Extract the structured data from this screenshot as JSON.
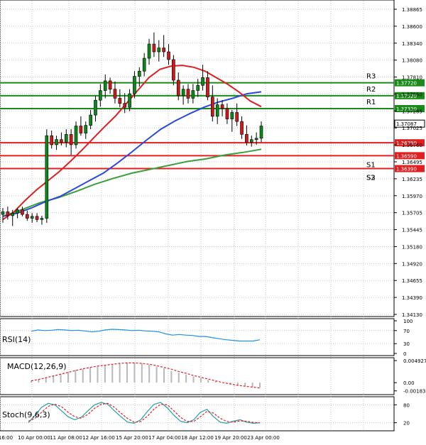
{
  "chart_data": {
    "type": "candlestick",
    "main": {
      "ylim": [
        1.3413,
        1.3886
      ],
      "y_ticks": [
        "1.38865",
        "1.38600",
        "1.38340",
        "1.38080",
        "1.37810",
        "1.37550",
        "1.37285",
        "1.37025",
        "1.36760",
        "1.36495",
        "1.36235",
        "1.35970",
        "1.35705",
        "1.35445",
        "1.35180",
        "1.34920",
        "1.34655",
        "1.34390",
        "1.34130"
      ],
      "x_ticks": [
        "16:00",
        "10 Apr 00:00",
        "11 Apr 08:00",
        "12 Apr 16:00",
        "15 Apr 20:00",
        "17 Apr 04:00",
        "18 Apr 12:00",
        "19 Apr 20:00",
        "23 Apr 00:00"
      ],
      "levels": [
        {
          "name": "R3",
          "value": 1.3772,
          "label": "1.37720",
          "color": "#1a8a1a"
        },
        {
          "name": "R2",
          "value": 1.3752,
          "label": "1.37520",
          "color": "#1a8a1a"
        },
        {
          "name": "R1",
          "value": 1.3732,
          "label": "1.37320",
          "color": "#1a8a1a"
        },
        {
          "name": "",
          "value": 1.3679,
          "label": "1.36790",
          "color": "#e02020"
        },
        {
          "name": "S1",
          "value": 1.3659,
          "label": "1.36590",
          "color": "#e02020"
        },
        {
          "name": "S2",
          "value": 1.3639,
          "label": "1.36390",
          "color": "#e02020"
        }
      ],
      "s3_label": "S3",
      "last_price": {
        "value": 1.37087,
        "label": "1.37087"
      },
      "candles": [
        [
          1.3568,
          1.3578,
          1.3555,
          1.3572
        ],
        [
          1.3572,
          1.358,
          1.356,
          1.3566
        ],
        [
          1.3566,
          1.3575,
          1.355,
          1.357
        ],
        [
          1.357,
          1.3578,
          1.3562,
          1.3575
        ],
        [
          1.3575,
          1.358,
          1.3565,
          1.3568
        ],
        [
          1.3568,
          1.3574,
          1.3558,
          1.3562
        ],
        [
          1.3562,
          1.357,
          1.3555,
          1.3565
        ],
        [
          1.3565,
          1.357,
          1.3556,
          1.356
        ],
        [
          1.356,
          1.3566,
          1.3552,
          1.3562
        ],
        [
          1.3562,
          1.37,
          1.3555,
          1.369
        ],
        [
          1.369,
          1.3698,
          1.367,
          1.3676
        ],
        [
          1.3676,
          1.369,
          1.3668,
          1.3684
        ],
        [
          1.3684,
          1.3695,
          1.3675,
          1.368
        ],
        [
          1.368,
          1.37,
          1.3672,
          1.3692
        ],
        [
          1.3692,
          1.37,
          1.366,
          1.3676
        ],
        [
          1.3676,
          1.3712,
          1.367,
          1.3705
        ],
        [
          1.3705,
          1.372,
          1.369,
          1.3694
        ],
        [
          1.3694,
          1.3712,
          1.3685,
          1.3706
        ],
        [
          1.3706,
          1.373,
          1.37,
          1.3722
        ],
        [
          1.3722,
          1.3752,
          1.3712,
          1.3745
        ],
        [
          1.3745,
          1.377,
          1.3735,
          1.376
        ],
        [
          1.376,
          1.3785,
          1.3748,
          1.3775
        ],
        [
          1.3775,
          1.378,
          1.3755,
          1.3762
        ],
        [
          1.3762,
          1.3774,
          1.374,
          1.3748
        ],
        [
          1.3748,
          1.3762,
          1.3734,
          1.374
        ],
        [
          1.374,
          1.3756,
          1.3725,
          1.3734
        ],
        [
          1.3734,
          1.3762,
          1.3728,
          1.3755
        ],
        [
          1.3755,
          1.379,
          1.3748,
          1.3782
        ],
        [
          1.3782,
          1.3796,
          1.3766,
          1.379
        ],
        [
          1.379,
          1.3818,
          1.3782,
          1.381
        ],
        [
          1.381,
          1.384,
          1.38,
          1.3832
        ],
        [
          1.3832,
          1.385,
          1.3812,
          1.382
        ],
        [
          1.382,
          1.3838,
          1.3805,
          1.3826
        ],
        [
          1.3826,
          1.3846,
          1.3812,
          1.382
        ],
        [
          1.382,
          1.3832,
          1.38,
          1.3808
        ],
        [
          1.3808,
          1.3815,
          1.3768,
          1.3776
        ],
        [
          1.3776,
          1.3788,
          1.3745,
          1.3752
        ],
        [
          1.3752,
          1.3768,
          1.3738,
          1.3762
        ],
        [
          1.3762,
          1.377,
          1.374,
          1.3748
        ],
        [
          1.3748,
          1.377,
          1.374,
          1.376
        ],
        [
          1.376,
          1.3778,
          1.375,
          1.3768
        ],
        [
          1.3768,
          1.38,
          1.376,
          1.378
        ],
        [
          1.378,
          1.379,
          1.3745,
          1.375
        ],
        [
          1.375,
          1.3768,
          1.3712,
          1.372
        ],
        [
          1.372,
          1.3748,
          1.3708,
          1.3738
        ],
        [
          1.3738,
          1.3745,
          1.372,
          1.3732
        ],
        [
          1.3732,
          1.374,
          1.3708,
          1.3716
        ],
        [
          1.3716,
          1.373,
          1.3696,
          1.3726
        ],
        [
          1.3726,
          1.374,
          1.3705,
          1.3712
        ],
        [
          1.3712,
          1.372,
          1.3685,
          1.3692
        ],
        [
          1.3692,
          1.3706,
          1.3675,
          1.368
        ],
        [
          1.368,
          1.369,
          1.3673,
          1.3684
        ],
        [
          1.3684,
          1.3695,
          1.3676,
          1.3686
        ],
        [
          1.3686,
          1.3712,
          1.368,
          1.3705
        ]
      ],
      "ma_red": [
        1.356,
        1.3572,
        1.359,
        1.3606,
        1.362,
        1.3634,
        1.365,
        1.3667,
        1.3685,
        1.3703,
        1.372,
        1.374,
        1.376,
        1.378,
        1.3793,
        1.3798,
        1.3799,
        1.3796,
        1.379,
        1.378,
        1.377,
        1.3758,
        1.3744,
        1.3735
      ],
      "ma_blue": [
        1.3565,
        1.357,
        1.3578,
        1.3588,
        1.3596,
        1.3608,
        1.362,
        1.3632,
        1.3648,
        1.3665,
        1.3683,
        1.37,
        1.3713,
        1.3724,
        1.3734,
        1.3742,
        1.3748,
        1.3755,
        1.3758
      ],
      "ma_green": [
        1.3565,
        1.3575,
        1.3586,
        1.3594,
        1.3604,
        1.3615,
        1.3624,
        1.3632,
        1.3638,
        1.3644,
        1.365,
        1.3654,
        1.366,
        1.3664,
        1.3669
      ]
    },
    "rsi": {
      "title": "RSI(14)",
      "y_ticks": [
        "100",
        "70",
        "30",
        "0"
      ],
      "ylim": [
        0,
        100
      ],
      "values": [
        68,
        72,
        70,
        71,
        73,
        72,
        70,
        71,
        69,
        66,
        68,
        72,
        74,
        73,
        72,
        70,
        71,
        69,
        68,
        66,
        60,
        56,
        58,
        56,
        55,
        52,
        52,
        48,
        45,
        42,
        40,
        38,
        38,
        38,
        42
      ]
    },
    "macd": {
      "title": "MACD(12,26,9)",
      "y_ticks": [
        "0.004927",
        "0.00",
        "-0.001836"
      ],
      "ylim": [
        -0.0022,
        0.0051
      ],
      "hist": [
        0.0004,
        0.0008,
        0.0012,
        0.0016,
        0.002,
        0.0024,
        0.0028,
        0.0031,
        0.0034,
        0.0036,
        0.0038,
        0.004,
        0.0042,
        0.0044,
        0.0044,
        0.0043,
        0.004,
        0.0036,
        0.0032,
        0.0026,
        0.0022,
        0.0018,
        0.0014,
        0.001,
        0.0006,
        0.0003,
        0.0,
        -0.0003,
        -0.0006,
        -0.0008,
        -0.001,
        -0.0011
      ],
      "signal": [
        0.0004,
        0.0007,
        0.0011,
        0.0015,
        0.0019,
        0.0023,
        0.0027,
        0.0031,
        0.0034,
        0.0037,
        0.0039,
        0.0041,
        0.0043,
        0.0044,
        0.0044,
        0.0043,
        0.0041,
        0.0038,
        0.0034,
        0.003,
        0.0025,
        0.0021,
        0.0016,
        0.0012,
        0.0008,
        0.0004,
        0.0,
        -0.0003,
        -0.0006,
        -0.0008,
        -0.001,
        -0.0012
      ]
    },
    "stoch": {
      "title": "Stoch(9,6,3)",
      "y_ticks": [
        "80",
        "20"
      ],
      "ylim": [
        0,
        100
      ],
      "k": [
        20,
        45,
        72,
        85,
        80,
        60,
        40,
        30,
        38,
        60,
        80,
        88,
        82,
        60,
        40,
        22,
        18,
        30,
        58,
        82,
        88,
        70,
        45,
        25,
        20,
        30,
        55,
        65,
        40,
        22,
        18,
        25,
        30,
        22,
        18,
        20
      ],
      "d": [
        25,
        35,
        55,
        75,
        82,
        74,
        55,
        40,
        35,
        48,
        68,
        82,
        85,
        72,
        52,
        34,
        22,
        24,
        42,
        66,
        82,
        80,
        60,
        38,
        24,
        24,
        40,
        58,
        52,
        35,
        24,
        22,
        26,
        25,
        21,
        20
      ]
    }
  }
}
